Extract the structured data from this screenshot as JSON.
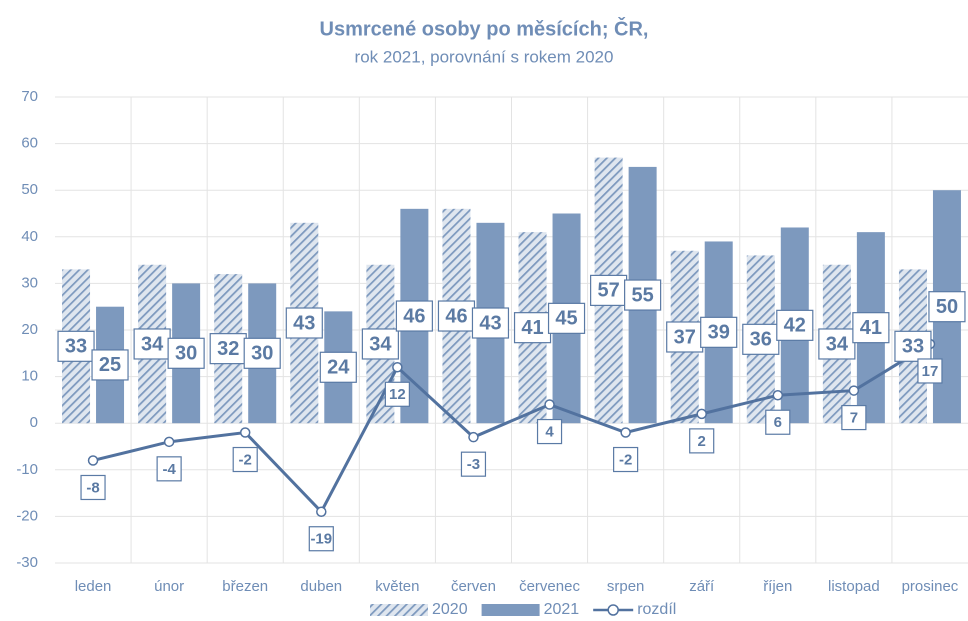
{
  "chart_data": {
    "type": "combo",
    "title": "Usmrcené osoby po měsících; ČR,",
    "subtitle": "rok 2021, porovnání s rokem 2020",
    "categories": [
      "leden",
      "únor",
      "březen",
      "duben",
      "květen",
      "červen",
      "červenec",
      "srpen",
      "září",
      "říjen",
      "listopad",
      "prosinec"
    ],
    "series": [
      {
        "name": "2020",
        "type": "bar",
        "fill": "hatched",
        "color": "#7d99be",
        "values": [
          33,
          34,
          32,
          43,
          34,
          46,
          41,
          57,
          37,
          36,
          34,
          33
        ]
      },
      {
        "name": "2021",
        "type": "bar",
        "fill": "solid",
        "color": "#7d99be",
        "values": [
          25,
          30,
          30,
          24,
          46,
          43,
          45,
          55,
          39,
          42,
          41,
          50
        ]
      },
      {
        "name": "rozdíl",
        "type": "line",
        "color": "#52729f",
        "values": [
          -8,
          -4,
          -2,
          -19,
          12,
          -3,
          4,
          -2,
          2,
          6,
          7,
          17
        ]
      }
    ],
    "ylim": [
      -30,
      70
    ],
    "yticks": [
      -30,
      -20,
      -10,
      0,
      10,
      20,
      30,
      40,
      50,
      60,
      70
    ],
    "grid": true,
    "legend": "bottom"
  }
}
